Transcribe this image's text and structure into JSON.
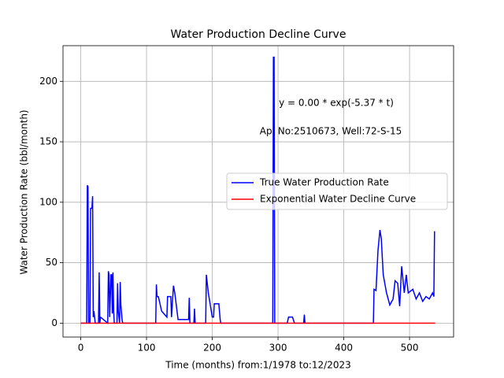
{
  "chart_data": {
    "type": "line",
    "title": "Water Production Decline Curve",
    "xlabel": "Time (months) from:1/1978 to:12/2023",
    "ylabel": "Water Production Rate (bbl/month)",
    "annotations": [
      "y = 0.00 * exp(-5.37 * t)",
      "Api No:2510673, Well:72-S-15"
    ],
    "series": [
      {
        "name": "True Water Production Rate",
        "color": "#0000ff",
        "x": [
          0,
          9,
          10,
          11,
          12,
          14,
          15,
          17,
          18,
          19,
          20,
          21,
          22,
          27,
          28,
          29,
          30,
          41,
          42,
          43,
          44,
          46,
          47,
          48,
          49,
          50,
          51,
          55,
          56,
          57,
          59,
          60,
          61,
          63,
          64,
          114,
          115,
          116,
          118,
          123,
          131,
          132,
          137,
          138,
          141,
          143,
          148,
          160,
          164,
          165,
          166,
          172,
          173,
          174,
          190,
          191,
          194,
          197,
          200,
          202,
          203,
          210,
          212,
          213,
          292,
          293,
          294,
          295,
          314,
          316,
          322,
          325,
          339,
          340,
          341,
          445,
          446,
          449,
          452,
          455,
          457,
          460,
          465,
          470,
          475,
          478,
          482,
          485,
          488,
          492,
          495,
          498,
          505,
          510,
          515,
          520,
          525,
          530,
          535,
          537,
          538
        ],
        "values": [
          0,
          0,
          114,
          113,
          0,
          0,
          95,
          95,
          105,
          5,
          10,
          5,
          0,
          0,
          42,
          0,
          5,
          0,
          43,
          40,
          5,
          40,
          40,
          8,
          42,
          10,
          0,
          0,
          33,
          10,
          0,
          34,
          15,
          2,
          0,
          0,
          32,
          22,
          22,
          10,
          5,
          22,
          22,
          5,
          31,
          25,
          3,
          3,
          3,
          21,
          0,
          0,
          12,
          0,
          0,
          40,
          25,
          15,
          5,
          5,
          16,
          16,
          3,
          0,
          0,
          220,
          220,
          0,
          0,
          5,
          5,
          0,
          0,
          7,
          0,
          0,
          28,
          27,
          60,
          77,
          70,
          40,
          25,
          15,
          20,
          35,
          33,
          14,
          47,
          25,
          40,
          25,
          28,
          20,
          25,
          18,
          22,
          20,
          25,
          22,
          76
        ]
      },
      {
        "name": "Exponential Water Decline Curve",
        "color": "#ff0000",
        "x": [
          0,
          539
        ],
        "values": [
          0,
          0
        ]
      }
    ],
    "xlim": [
      -27,
      567
    ],
    "xticks": [
      0,
      100,
      200,
      300,
      400,
      500
    ],
    "ylim": [
      -11.5,
      229.5
    ],
    "yticks": [
      0,
      50,
      100,
      150,
      200
    ],
    "grid": true,
    "legend": "center right"
  }
}
